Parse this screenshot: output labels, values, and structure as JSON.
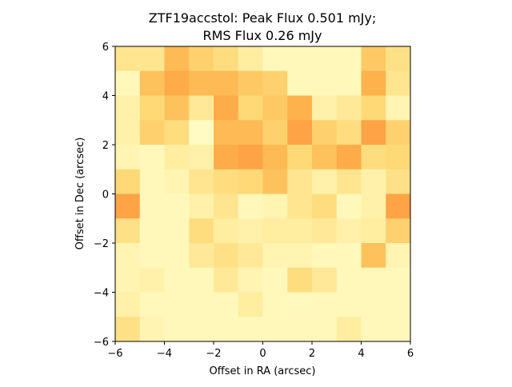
{
  "chart_data": {
    "type": "heatmap",
    "title_line1": "ZTF19accstol: Peak Flux 0.501 mJy;",
    "title_line2": "RMS Flux 0.26 mJy",
    "xlabel": "Offset in RA (arcsec)",
    "ylabel": "Offset in Dec (arcsec)",
    "xlim": [
      -6,
      6
    ],
    "ylim": [
      -6,
      6
    ],
    "xticks": [
      -6,
      -4,
      -2,
      0,
      2,
      4,
      6
    ],
    "yticks": [
      -6,
      -4,
      -2,
      0,
      2,
      4,
      6
    ],
    "xtick_labels": [
      "−6",
      "−4",
      "−2",
      "0",
      "2",
      "4",
      "6"
    ],
    "ytick_labels": [
      "−6",
      "−4",
      "−2",
      "0",
      "2",
      "4",
      "6"
    ],
    "grid": false,
    "colormap": "YlOrRd",
    "colormap_stops": [
      "#ffffcc",
      "#ffeda0",
      "#fed976",
      "#feb24c",
      "#fd8d3c"
    ],
    "pixel_size": 1,
    "rows_top_to_bottom": [
      [
        0.35,
        0.35,
        0.7,
        0.55,
        0.45,
        0.25,
        0.1,
        0.1,
        0.1,
        0.1,
        0.6,
        0.4
      ],
      [
        0.1,
        0.65,
        0.8,
        0.7,
        0.7,
        0.6,
        0.55,
        0.1,
        0.1,
        0.1,
        0.75,
        0.35
      ],
      [
        0.2,
        0.5,
        0.65,
        0.3,
        0.8,
        0.5,
        0.6,
        0.75,
        0.2,
        0.3,
        0.5,
        0.15
      ],
      [
        0.2,
        0.55,
        0.45,
        0.05,
        0.7,
        0.7,
        0.55,
        0.85,
        0.55,
        0.45,
        0.85,
        0.55
      ],
      [
        0.15,
        0.1,
        0.25,
        0.2,
        0.8,
        0.85,
        0.7,
        0.5,
        0.65,
        0.8,
        0.45,
        0.5
      ],
      [
        0.5,
        0.1,
        0.15,
        0.35,
        0.45,
        0.5,
        0.65,
        0.35,
        0.2,
        0.35,
        0.2,
        0.4
      ],
      [
        0.85,
        0.1,
        0.1,
        0.2,
        0.35,
        0.1,
        0.15,
        0.35,
        0.45,
        0.1,
        0.2,
        0.85
      ],
      [
        0.4,
        0.1,
        0.1,
        0.45,
        0.25,
        0.2,
        0.25,
        0.25,
        0.3,
        0.2,
        0.25,
        0.55
      ],
      [
        0.15,
        0.1,
        0.1,
        0.3,
        0.4,
        0.3,
        0.15,
        0.15,
        0.1,
        0.1,
        0.65,
        0.15
      ],
      [
        0.15,
        0.2,
        0.1,
        0.1,
        0.3,
        0.15,
        0.1,
        0.45,
        0.3,
        0.1,
        0.1,
        0.1
      ],
      [
        0.2,
        0.1,
        0.1,
        0.1,
        0.1,
        0.25,
        0.1,
        0.08,
        0.1,
        0.1,
        0.1,
        0.1
      ],
      [
        0.4,
        0.15,
        0.1,
        0.1,
        0.1,
        0.1,
        0.1,
        0.1,
        0.1,
        0.25,
        0.1,
        0.1
      ]
    ]
  }
}
